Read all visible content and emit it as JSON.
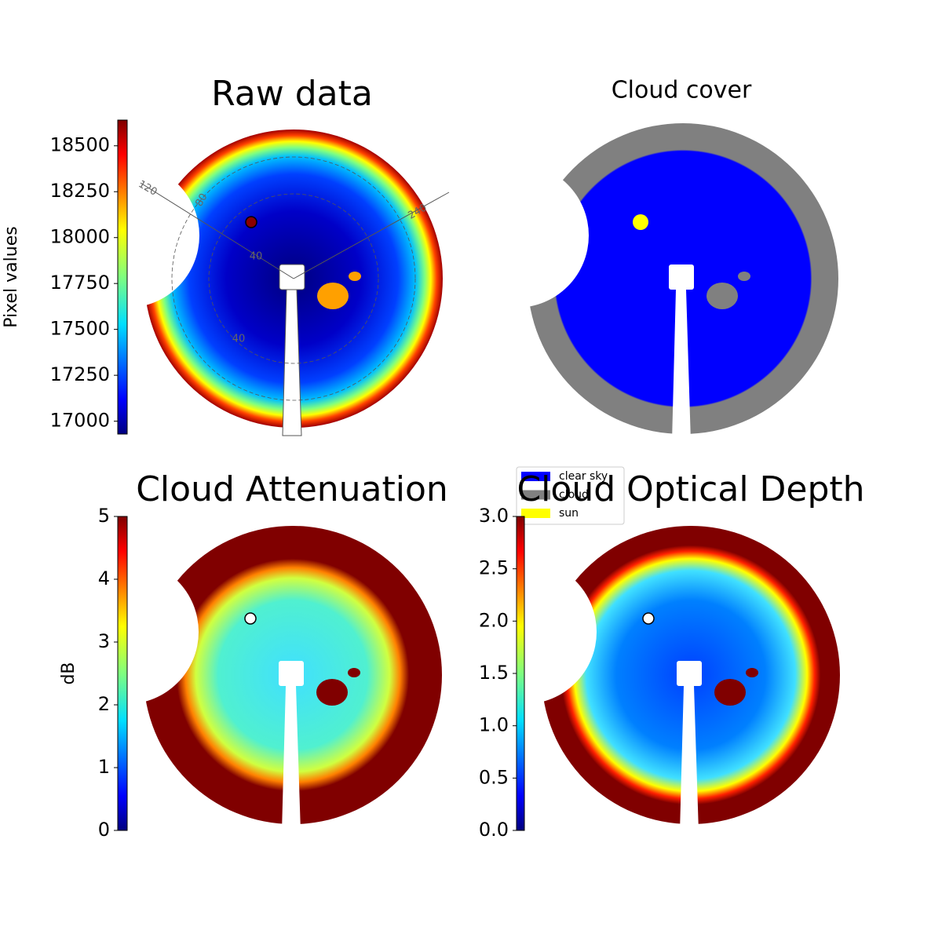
{
  "chart_data": [
    {
      "type": "image",
      "title": "Raw data",
      "annotations": [
        "120",
        "80",
        "240",
        "40",
        "40"
      ],
      "colorbar": {
        "label": "Pixel values",
        "ylim": [
          16930,
          18640
        ],
        "yticks": [
          17000,
          17250,
          17500,
          17750,
          18000,
          18250,
          18500
        ]
      }
    },
    {
      "type": "image",
      "title": "Cloud cover",
      "legend": [
        {
          "name": "clear sky",
          "color": "#0000ff"
        },
        {
          "name": "cloud",
          "color": "#808080"
        },
        {
          "name": "sun",
          "color": "#ffff00"
        }
      ]
    },
    {
      "type": "image",
      "title": "Cloud Attenuation",
      "colorbar": {
        "label": "dB",
        "ylim": [
          0,
          5
        ],
        "yticks": [
          0,
          1,
          2,
          3,
          4,
          5
        ]
      }
    },
    {
      "type": "image",
      "title": "Cloud Optical Depth",
      "colorbar": {
        "ylim": [
          0,
          3
        ],
        "yticks": [
          {
            "value": 0,
            "label": "0.0"
          },
          0.5,
          {
            "value": 1,
            "label": "1.0"
          },
          1.5,
          {
            "value": 2,
            "label": "2.0"
          },
          2.5,
          {
            "value": 3,
            "label": "3.0"
          }
        ]
      }
    }
  ]
}
